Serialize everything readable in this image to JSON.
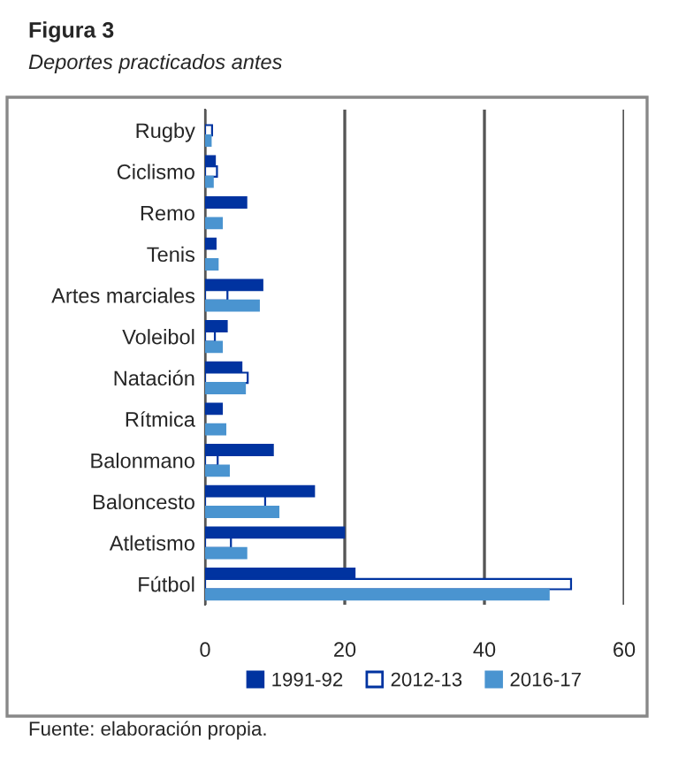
{
  "chart_data": {
    "type": "bar",
    "orientation": "horizontal",
    "title": "Figura 3",
    "subtitle": "Deportes practicados antes",
    "categories": [
      "Rugby",
      "Ciclismo",
      "Remo",
      "Tenis",
      "Artes marciales",
      "Voleibol",
      "Natación",
      "Rítmica",
      "Balonmano",
      "Baloncesto",
      "Atletismo",
      "Fútbol"
    ],
    "series": [
      {
        "name": "1991-92",
        "color": "#0033a0",
        "values": [
          0,
          1.4,
          5.9,
          1.5,
          8.2,
          3.1,
          5.2,
          2.4,
          9.7,
          15.6,
          19.9,
          21.4
        ]
      },
      {
        "name": "2012-13",
        "color": "#ffffff",
        "values": [
          1.0,
          1.7,
          0,
          0,
          3.2,
          1.4,
          6.1,
          0,
          1.8,
          8.6,
          3.7,
          52.4
        ]
      },
      {
        "name": "2016-17",
        "color": "#4a94d0",
        "values": [
          0.8,
          1.1,
          2.4,
          1.8,
          7.7,
          2.4,
          5.7,
          2.9,
          3.4,
          10.5,
          5.9,
          49.2
        ]
      }
    ],
    "xlim": [
      0,
      60
    ],
    "xticks": [
      0,
      20,
      40,
      60
    ],
    "grid": "x",
    "legend": "bottom",
    "annotations": [
      "Fuente: elaboración propia."
    ]
  }
}
